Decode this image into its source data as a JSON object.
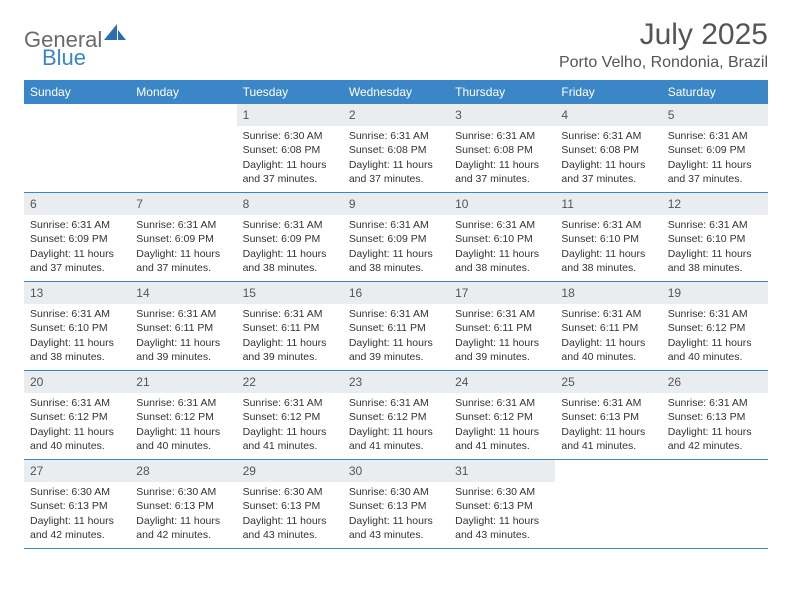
{
  "brand": {
    "word1": "General",
    "word2": "Blue",
    "logo_color": "#2a6db0"
  },
  "colors": {
    "header_bg": "#3b86c7",
    "header_text": "#ffffff",
    "daynum_bg": "#e9edf0",
    "rule": "#3b86c7",
    "text_gray": "#555555"
  },
  "title": "July 2025",
  "location": "Porto Velho, Rondonia, Brazil",
  "weekdays": [
    "Sunday",
    "Monday",
    "Tuesday",
    "Wednesday",
    "Thursday",
    "Friday",
    "Saturday"
  ],
  "weeks": [
    [
      {
        "empty": true
      },
      {
        "empty": true
      },
      {
        "num": "1",
        "sunrise": "Sunrise: 6:30 AM",
        "sunset": "Sunset: 6:08 PM",
        "daylight": "Daylight: 11 hours and 37 minutes."
      },
      {
        "num": "2",
        "sunrise": "Sunrise: 6:31 AM",
        "sunset": "Sunset: 6:08 PM",
        "daylight": "Daylight: 11 hours and 37 minutes."
      },
      {
        "num": "3",
        "sunrise": "Sunrise: 6:31 AM",
        "sunset": "Sunset: 6:08 PM",
        "daylight": "Daylight: 11 hours and 37 minutes."
      },
      {
        "num": "4",
        "sunrise": "Sunrise: 6:31 AM",
        "sunset": "Sunset: 6:08 PM",
        "daylight": "Daylight: 11 hours and 37 minutes."
      },
      {
        "num": "5",
        "sunrise": "Sunrise: 6:31 AM",
        "sunset": "Sunset: 6:09 PM",
        "daylight": "Daylight: 11 hours and 37 minutes."
      }
    ],
    [
      {
        "num": "6",
        "sunrise": "Sunrise: 6:31 AM",
        "sunset": "Sunset: 6:09 PM",
        "daylight": "Daylight: 11 hours and 37 minutes."
      },
      {
        "num": "7",
        "sunrise": "Sunrise: 6:31 AM",
        "sunset": "Sunset: 6:09 PM",
        "daylight": "Daylight: 11 hours and 37 minutes."
      },
      {
        "num": "8",
        "sunrise": "Sunrise: 6:31 AM",
        "sunset": "Sunset: 6:09 PM",
        "daylight": "Daylight: 11 hours and 38 minutes."
      },
      {
        "num": "9",
        "sunrise": "Sunrise: 6:31 AM",
        "sunset": "Sunset: 6:09 PM",
        "daylight": "Daylight: 11 hours and 38 minutes."
      },
      {
        "num": "10",
        "sunrise": "Sunrise: 6:31 AM",
        "sunset": "Sunset: 6:10 PM",
        "daylight": "Daylight: 11 hours and 38 minutes."
      },
      {
        "num": "11",
        "sunrise": "Sunrise: 6:31 AM",
        "sunset": "Sunset: 6:10 PM",
        "daylight": "Daylight: 11 hours and 38 minutes."
      },
      {
        "num": "12",
        "sunrise": "Sunrise: 6:31 AM",
        "sunset": "Sunset: 6:10 PM",
        "daylight": "Daylight: 11 hours and 38 minutes."
      }
    ],
    [
      {
        "num": "13",
        "sunrise": "Sunrise: 6:31 AM",
        "sunset": "Sunset: 6:10 PM",
        "daylight": "Daylight: 11 hours and 38 minutes."
      },
      {
        "num": "14",
        "sunrise": "Sunrise: 6:31 AM",
        "sunset": "Sunset: 6:11 PM",
        "daylight": "Daylight: 11 hours and 39 minutes."
      },
      {
        "num": "15",
        "sunrise": "Sunrise: 6:31 AM",
        "sunset": "Sunset: 6:11 PM",
        "daylight": "Daylight: 11 hours and 39 minutes."
      },
      {
        "num": "16",
        "sunrise": "Sunrise: 6:31 AM",
        "sunset": "Sunset: 6:11 PM",
        "daylight": "Daylight: 11 hours and 39 minutes."
      },
      {
        "num": "17",
        "sunrise": "Sunrise: 6:31 AM",
        "sunset": "Sunset: 6:11 PM",
        "daylight": "Daylight: 11 hours and 39 minutes."
      },
      {
        "num": "18",
        "sunrise": "Sunrise: 6:31 AM",
        "sunset": "Sunset: 6:11 PM",
        "daylight": "Daylight: 11 hours and 40 minutes."
      },
      {
        "num": "19",
        "sunrise": "Sunrise: 6:31 AM",
        "sunset": "Sunset: 6:12 PM",
        "daylight": "Daylight: 11 hours and 40 minutes."
      }
    ],
    [
      {
        "num": "20",
        "sunrise": "Sunrise: 6:31 AM",
        "sunset": "Sunset: 6:12 PM",
        "daylight": "Daylight: 11 hours and 40 minutes."
      },
      {
        "num": "21",
        "sunrise": "Sunrise: 6:31 AM",
        "sunset": "Sunset: 6:12 PM",
        "daylight": "Daylight: 11 hours and 40 minutes."
      },
      {
        "num": "22",
        "sunrise": "Sunrise: 6:31 AM",
        "sunset": "Sunset: 6:12 PM",
        "daylight": "Daylight: 11 hours and 41 minutes."
      },
      {
        "num": "23",
        "sunrise": "Sunrise: 6:31 AM",
        "sunset": "Sunset: 6:12 PM",
        "daylight": "Daylight: 11 hours and 41 minutes."
      },
      {
        "num": "24",
        "sunrise": "Sunrise: 6:31 AM",
        "sunset": "Sunset: 6:12 PM",
        "daylight": "Daylight: 11 hours and 41 minutes."
      },
      {
        "num": "25",
        "sunrise": "Sunrise: 6:31 AM",
        "sunset": "Sunset: 6:13 PM",
        "daylight": "Daylight: 11 hours and 41 minutes."
      },
      {
        "num": "26",
        "sunrise": "Sunrise: 6:31 AM",
        "sunset": "Sunset: 6:13 PM",
        "daylight": "Daylight: 11 hours and 42 minutes."
      }
    ],
    [
      {
        "num": "27",
        "sunrise": "Sunrise: 6:30 AM",
        "sunset": "Sunset: 6:13 PM",
        "daylight": "Daylight: 11 hours and 42 minutes."
      },
      {
        "num": "28",
        "sunrise": "Sunrise: 6:30 AM",
        "sunset": "Sunset: 6:13 PM",
        "daylight": "Daylight: 11 hours and 42 minutes."
      },
      {
        "num": "29",
        "sunrise": "Sunrise: 6:30 AM",
        "sunset": "Sunset: 6:13 PM",
        "daylight": "Daylight: 11 hours and 43 minutes."
      },
      {
        "num": "30",
        "sunrise": "Sunrise: 6:30 AM",
        "sunset": "Sunset: 6:13 PM",
        "daylight": "Daylight: 11 hours and 43 minutes."
      },
      {
        "num": "31",
        "sunrise": "Sunrise: 6:30 AM",
        "sunset": "Sunset: 6:13 PM",
        "daylight": "Daylight: 11 hours and 43 minutes."
      },
      {
        "empty": true
      },
      {
        "empty": true
      }
    ]
  ]
}
